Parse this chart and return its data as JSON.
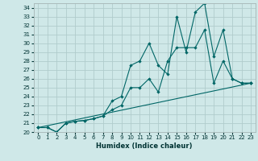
{
  "xlabel": "Humidex (Indice chaleur)",
  "bg_color": "#cfe8e8",
  "grid_color": "#b0cccc",
  "line_color": "#006666",
  "xlim": [
    -0.5,
    23.5
  ],
  "ylim": [
    20,
    34.5
  ],
  "xticks": [
    0,
    1,
    2,
    3,
    4,
    5,
    6,
    7,
    8,
    9,
    10,
    11,
    12,
    13,
    14,
    15,
    16,
    17,
    18,
    19,
    20,
    21,
    22,
    23
  ],
  "yticks": [
    20,
    21,
    22,
    23,
    24,
    25,
    26,
    27,
    28,
    29,
    30,
    31,
    32,
    33,
    34
  ],
  "line1_x": [
    0,
    1,
    2,
    3,
    4,
    5,
    6,
    7,
    8,
    9,
    10,
    11,
    12,
    13,
    14,
    15,
    16,
    17,
    18,
    19,
    20,
    21,
    22,
    23
  ],
  "line1_y": [
    20.5,
    20.5,
    20.0,
    21.0,
    21.2,
    21.3,
    21.5,
    21.8,
    23.5,
    24.0,
    27.5,
    28.0,
    30.0,
    27.5,
    26.5,
    33.0,
    29.0,
    33.5,
    34.5,
    28.5,
    31.5,
    26.0,
    25.5,
    25.5
  ],
  "line2_x": [
    0,
    1,
    2,
    3,
    4,
    5,
    6,
    7,
    8,
    9,
    10,
    11,
    12,
    13,
    14,
    15,
    16,
    17,
    18,
    19,
    20,
    21,
    22,
    23
  ],
  "line2_y": [
    20.5,
    20.5,
    20.0,
    21.0,
    21.2,
    21.3,
    21.5,
    21.8,
    22.5,
    23.0,
    25.0,
    25.0,
    26.0,
    24.5,
    28.0,
    29.5,
    29.5,
    29.5,
    31.5,
    25.5,
    28.0,
    26.0,
    25.5,
    25.5
  ],
  "line3_x": [
    0,
    23
  ],
  "line3_y": [
    20.5,
    25.5
  ],
  "tick_fontsize": 5.0,
  "xlabel_fontsize": 6.0
}
